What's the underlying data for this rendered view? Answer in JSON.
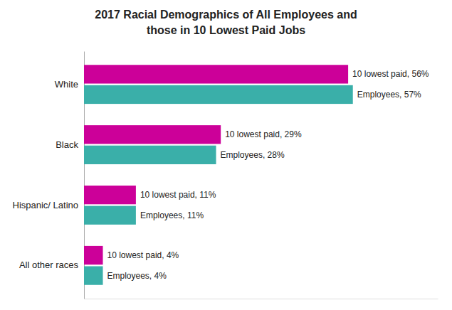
{
  "chart_data": {
    "type": "bar",
    "title": [
      "2017 Racial Demographics of All Employees and",
      "those in 10 Lowest Paid Jobs"
    ],
    "orientation": "horizontal",
    "categories": [
      "White",
      "Black",
      "Hispanic/ Latino",
      "All other races"
    ],
    "series": [
      {
        "color": "#CC0099",
        "values": [
          56,
          29,
          11,
          4
        ],
        "value_labels": [
          "10 lowest paid, 56%",
          "10 lowest paid, 29%",
          "10 lowest paid, 11%",
          "10 lowest paid, 4%"
        ]
      },
      {
        "color": "#3AAFA9",
        "values": [
          57,
          28,
          11,
          4
        ],
        "value_labels": [
          "Employees, 57%",
          "Employees, 28%",
          "Employees, 11%",
          "Employees, 4%"
        ]
      }
    ],
    "xlim": [
      0,
      75
    ],
    "data_labels": true,
    "tick_labels": "y",
    "grid": false
  }
}
